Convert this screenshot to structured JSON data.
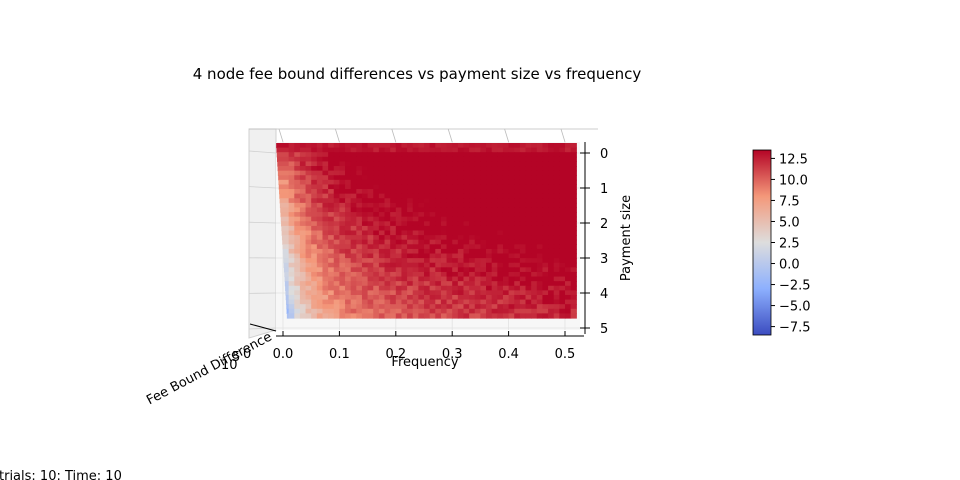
{
  "chart_data": {
    "type": "heatmap",
    "title": "4 node fee bound differences vs payment size vs frequency",
    "xlabel": "Frequency",
    "ylabel": "Payment size",
    "zlabel": "Fee Bound Difference",
    "xlim": [
      -0.01,
      0.53
    ],
    "ylim": [
      -0.2,
      5.2
    ],
    "x_ticks": [
      "0.0",
      "0.1",
      "0.2",
      "0.3",
      "0.4",
      "0.5"
    ],
    "y_ticks": [
      "0",
      "1",
      "2",
      "3",
      "4",
      "5"
    ],
    "z_ticks": [
      "10",
      "5",
      "0"
    ],
    "grid": true,
    "surface": {
      "x_range": [
        0.0,
        0.52
      ],
      "y_range": [
        0.0,
        5.0
      ],
      "z_range": [
        -8.5,
        13.5
      ],
      "description_values": "fee bound difference grows with frequency and shrinks with payment size; negative values at very low frequency and large payment size"
    },
    "colorbar": {
      "colormap": "coolwarm",
      "min": -8.5,
      "max": 13.5,
      "ticks": [
        "−7.5",
        "−5.0",
        "−2.5",
        "0.0",
        "2.5",
        "5.0",
        "7.5",
        "10.0",
        "12.5"
      ],
      "tick_values": [
        -7.5,
        -5.0,
        -2.5,
        0.0,
        2.5,
        5.0,
        7.5,
        10.0,
        12.5
      ]
    },
    "footer": "trials: 10: Time: 10"
  }
}
